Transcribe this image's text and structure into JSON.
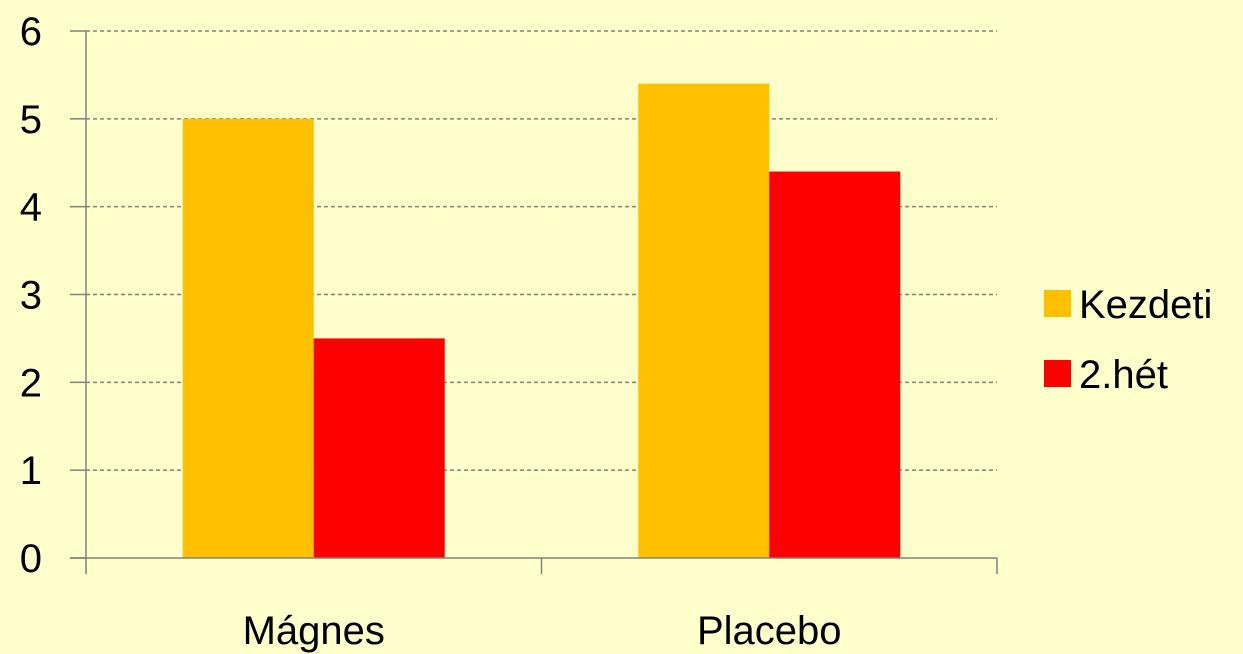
{
  "chart_data": {
    "type": "bar",
    "categories": [
      "Mágnes",
      "Placebo"
    ],
    "series": [
      {
        "name": "Kezdeti",
        "values": [
          5.0,
          5.4
        ],
        "color": "#FFC000"
      },
      {
        "name": "2.hét",
        "values": [
          2.5,
          4.4
        ],
        "color": "#FF0000"
      }
    ],
    "ylim": [
      0,
      6
    ],
    "yticks": [
      0,
      1,
      2,
      3,
      4,
      5,
      6
    ],
    "grid": true,
    "legend": "right"
  }
}
